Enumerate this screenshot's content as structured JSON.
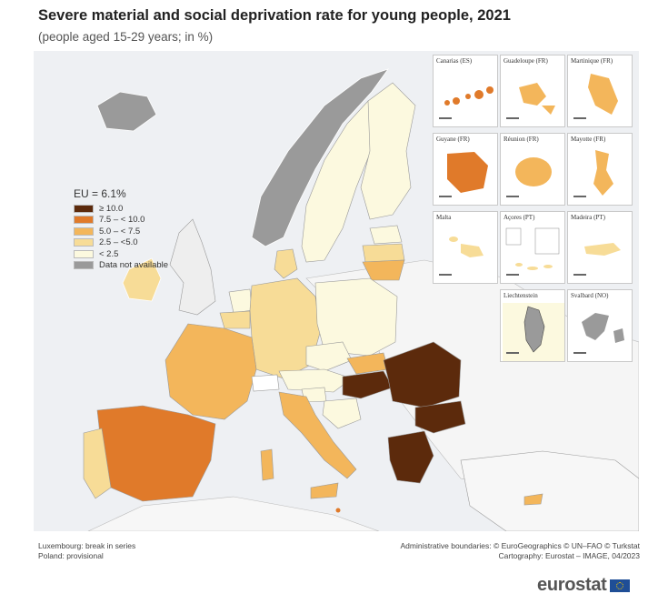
{
  "title": "Severe material and social deprivation rate for young people, 2021",
  "subtitle": "(people aged 15-29 years; in %)",
  "legend": {
    "eu_label": "EU = 6.1%",
    "items": [
      {
        "label": "≥ 10.0",
        "color": "#5c2a0c"
      },
      {
        "label": "7.5 – < 10.0",
        "color": "#e07a2a"
      },
      {
        "label": "5.0 – < 7.5",
        "color": "#f3b65b"
      },
      {
        "label": "2.5 – <5.0",
        "color": "#f7dc97"
      },
      {
        "label": "< 2.5",
        "color": "#fcf9df"
      },
      {
        "label": "Data not available",
        "color": "#9a9a9a"
      }
    ]
  },
  "insets": [
    {
      "label": "Canarias (ES)"
    },
    {
      "label": "Guadeloupe (FR)"
    },
    {
      "label": "Martinique (FR)"
    },
    {
      "label": "Guyane (FR)"
    },
    {
      "label": "Réunion (FR)"
    },
    {
      "label": "Mayotte (FR)"
    },
    {
      "label": "Malta"
    },
    {
      "label": "Açores (PT)"
    },
    {
      "label": "Madeira (PT)"
    },
    {
      "label": "Liechtenstein"
    },
    {
      "label": "Svalbard (NO)"
    }
  ],
  "footnotes": {
    "left": [
      "Luxembourg: break in series",
      "Poland: provisional"
    ],
    "right": [
      "Administrative boundaries: © EuroGeographics © UN–FAO © Turkstat",
      "Cartography: Eurostat – IMAGE, 04/2023"
    ]
  },
  "brand": "eurostat",
  "colors": {
    "sea": "#eef0f3",
    "non_eu": "#f4f4f4",
    "na": "#9a9a9a"
  }
}
